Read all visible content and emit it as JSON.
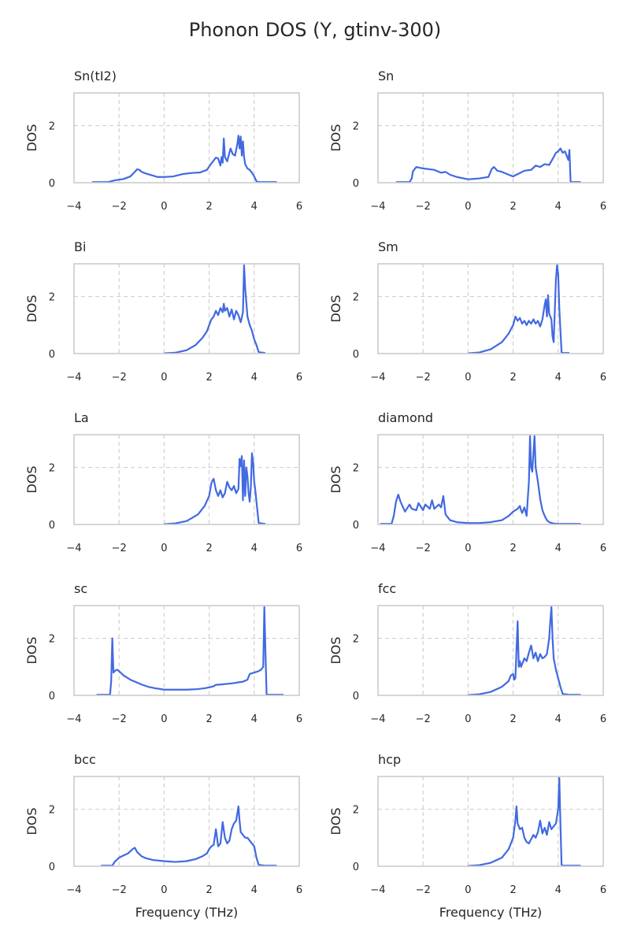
{
  "figure_title": "Phonon DOS (Y, gtinv-300)",
  "colors": {
    "line": "#4169e1",
    "grid": "#cccccc",
    "text": "#262626"
  },
  "chart_data": [
    {
      "type": "line",
      "title": "Sn(tI2)",
      "ylabel": "DOS",
      "xlabel": "",
      "xlim": [
        -4,
        6
      ],
      "ylim": [
        0,
        3.15
      ],
      "xticks": [
        -4,
        -2,
        0,
        2,
        4,
        6
      ],
      "yticks": [
        0,
        2
      ],
      "grid": true,
      "series": [
        {
          "x": [
            -3.2,
            -2.5,
            -2.2,
            -1.8,
            -1.5,
            -1.3,
            -1.2,
            -1.1,
            -1.0,
            -0.8,
            -0.5,
            -0.3,
            0.0,
            0.4,
            0.8,
            1.2,
            1.6,
            1.9,
            2.1,
            2.3,
            2.4,
            2.5,
            2.55,
            2.6,
            2.65,
            2.7,
            2.8,
            2.95,
            3.05,
            3.15,
            3.25,
            3.3,
            3.35,
            3.4,
            3.45,
            3.5,
            3.55,
            3.6,
            3.7,
            3.8,
            3.9,
            4.0,
            4.1,
            4.2,
            4.5,
            5.0
          ],
          "y": [
            0.02,
            0.02,
            0.08,
            0.13,
            0.22,
            0.38,
            0.47,
            0.45,
            0.38,
            0.32,
            0.25,
            0.2,
            0.2,
            0.22,
            0.3,
            0.34,
            0.36,
            0.45,
            0.68,
            0.88,
            0.85,
            0.6,
            0.9,
            0.7,
            1.55,
            0.9,
            0.75,
            1.2,
            1.0,
            0.95,
            1.35,
            1.65,
            1.2,
            1.62,
            0.95,
            1.45,
            0.9,
            0.65,
            0.5,
            0.45,
            0.35,
            0.22,
            0.05,
            0.02,
            0.02,
            0.02
          ]
        }
      ]
    },
    {
      "type": "line",
      "title": "Sn",
      "ylabel": "DOS",
      "xlabel": "",
      "xlim": [
        -4,
        6
      ],
      "ylim": [
        0,
        3.15
      ],
      "xticks": [
        -4,
        -2,
        0,
        2,
        4,
        6
      ],
      "yticks": [
        0,
        2
      ],
      "grid": true,
      "series": [
        {
          "x": [
            -3.2,
            -2.6,
            -2.5,
            -2.45,
            -2.3,
            -2.0,
            -1.5,
            -1.2,
            -1.0,
            -0.8,
            -0.5,
            0.0,
            0.5,
            0.9,
            1.05,
            1.15,
            1.3,
            1.5,
            1.8,
            2.0,
            2.2,
            2.5,
            2.8,
            3.0,
            3.2,
            3.4,
            3.6,
            3.8,
            3.9,
            4.0,
            4.1,
            4.2,
            4.3,
            4.4,
            4.45,
            4.5,
            4.55,
            4.6,
            5.0
          ],
          "y": [
            0.02,
            0.02,
            0.15,
            0.4,
            0.55,
            0.5,
            0.45,
            0.35,
            0.38,
            0.28,
            0.2,
            0.12,
            0.15,
            0.2,
            0.48,
            0.55,
            0.42,
            0.38,
            0.28,
            0.22,
            0.3,
            0.42,
            0.45,
            0.6,
            0.55,
            0.65,
            0.62,
            0.9,
            1.05,
            1.1,
            1.2,
            1.05,
            1.1,
            0.9,
            0.8,
            1.15,
            0.05,
            0.02,
            0.02
          ]
        }
      ]
    },
    {
      "type": "line",
      "title": "Bi",
      "ylabel": "DOS",
      "xlabel": "",
      "xlim": [
        -4,
        6
      ],
      "ylim": [
        0,
        3.15
      ],
      "xticks": [
        -4,
        -2,
        0,
        2,
        4,
        6
      ],
      "yticks": [
        0,
        2
      ],
      "grid": true,
      "series": [
        {
          "x": [
            0.0,
            0.5,
            1.0,
            1.4,
            1.7,
            1.9,
            2.0,
            2.1,
            2.2,
            2.3,
            2.4,
            2.5,
            2.6,
            2.65,
            2.7,
            2.8,
            2.9,
            3.0,
            3.1,
            3.2,
            3.3,
            3.4,
            3.5,
            3.55,
            3.6,
            3.7,
            3.8,
            3.9,
            4.0,
            4.1,
            4.2,
            4.5
          ],
          "y": [
            0.01,
            0.03,
            0.12,
            0.3,
            0.55,
            0.78,
            1.0,
            1.2,
            1.3,
            1.5,
            1.35,
            1.6,
            1.45,
            1.75,
            1.5,
            1.6,
            1.3,
            1.55,
            1.2,
            1.5,
            1.35,
            1.1,
            1.45,
            3.1,
            2.3,
            1.3,
            1.0,
            0.8,
            0.5,
            0.3,
            0.05,
            0.02
          ]
        }
      ]
    },
    {
      "type": "line",
      "title": "Sm",
      "ylabel": "DOS",
      "xlabel": "",
      "xlim": [
        -4,
        6
      ],
      "ylim": [
        0,
        3.15
      ],
      "xticks": [
        -4,
        -2,
        0,
        2,
        4,
        6
      ],
      "yticks": [
        0,
        2
      ],
      "grid": true,
      "series": [
        {
          "x": [
            0.0,
            0.5,
            1.0,
            1.5,
            1.8,
            2.0,
            2.1,
            2.2,
            2.3,
            2.4,
            2.5,
            2.6,
            2.7,
            2.8,
            2.9,
            3.0,
            3.1,
            3.2,
            3.3,
            3.4,
            3.45,
            3.5,
            3.55,
            3.6,
            3.7,
            3.75,
            3.8,
            3.85,
            3.9,
            3.95,
            4.0,
            4.05,
            4.1,
            4.15,
            4.2,
            4.5
          ],
          "y": [
            0.01,
            0.04,
            0.15,
            0.4,
            0.7,
            1.0,
            1.3,
            1.15,
            1.25,
            1.05,
            1.15,
            1.0,
            1.15,
            1.05,
            1.2,
            1.05,
            1.15,
            0.95,
            1.2,
            1.7,
            1.9,
            1.3,
            2.05,
            1.4,
            1.2,
            0.6,
            0.4,
            1.5,
            2.6,
            3.1,
            2.8,
            1.6,
            0.8,
            0.05,
            0.02,
            0.02
          ]
        }
      ]
    },
    {
      "type": "line",
      "title": "La",
      "ylabel": "DOS",
      "xlabel": "",
      "xlim": [
        -4,
        6
      ],
      "ylim": [
        0,
        3.15
      ],
      "xticks": [
        -4,
        -2,
        0,
        2,
        4,
        6
      ],
      "yticks": [
        0,
        2
      ],
      "grid": true,
      "series": [
        {
          "x": [
            0.0,
            0.5,
            1.0,
            1.5,
            1.8,
            2.0,
            2.1,
            2.15,
            2.2,
            2.3,
            2.4,
            2.5,
            2.6,
            2.7,
            2.8,
            2.9,
            3.0,
            3.1,
            3.2,
            3.3,
            3.35,
            3.4,
            3.45,
            3.5,
            3.55,
            3.6,
            3.65,
            3.7,
            3.75,
            3.8,
            3.85,
            3.9,
            3.95,
            4.0,
            4.05,
            4.1,
            4.2,
            4.5
          ],
          "y": [
            0.01,
            0.04,
            0.12,
            0.35,
            0.65,
            1.0,
            1.45,
            1.55,
            1.6,
            1.2,
            1.0,
            1.2,
            0.95,
            1.1,
            1.5,
            1.3,
            1.2,
            1.35,
            1.1,
            1.25,
            2.3,
            2.05,
            2.4,
            0.85,
            2.25,
            1.0,
            2.0,
            1.7,
            1.1,
            0.8,
            1.3,
            2.5,
            2.2,
            1.5,
            1.2,
            0.8,
            0.05,
            0.02
          ]
        }
      ]
    },
    {
      "type": "line",
      "title": "diamond",
      "ylabel": "DOS",
      "xlabel": "",
      "xlim": [
        -4,
        6
      ],
      "ylim": [
        0,
        3.15
      ],
      "xticks": [
        -4,
        -2,
        0,
        2,
        4,
        6
      ],
      "yticks": [
        0,
        2
      ],
      "grid": true,
      "series": [
        {
          "x": [
            -3.9,
            -3.4,
            -3.3,
            -3.2,
            -3.1,
            -3.0,
            -2.8,
            -2.6,
            -2.5,
            -2.3,
            -2.2,
            -2.0,
            -1.9,
            -1.7,
            -1.6,
            -1.5,
            -1.3,
            -1.2,
            -1.1,
            -1.0,
            -0.8,
            -0.5,
            0.0,
            0.5,
            1.0,
            1.5,
            1.8,
            2.0,
            2.2,
            2.3,
            2.35,
            2.4,
            2.5,
            2.6,
            2.7,
            2.75,
            2.8,
            2.85,
            2.9,
            2.95,
            3.0,
            3.1,
            3.2,
            3.3,
            3.4,
            3.5,
            3.6,
            3.8,
            4.0,
            4.3,
            5.0
          ],
          "y": [
            0.02,
            0.02,
            0.3,
            0.8,
            1.05,
            0.8,
            0.45,
            0.7,
            0.55,
            0.5,
            0.75,
            0.5,
            0.7,
            0.55,
            0.85,
            0.55,
            0.7,
            0.6,
            1.0,
            0.35,
            0.15,
            0.08,
            0.05,
            0.05,
            0.08,
            0.15,
            0.3,
            0.45,
            0.55,
            0.65,
            0.5,
            0.4,
            0.6,
            0.3,
            1.5,
            3.1,
            2.0,
            1.85,
            2.5,
            3.1,
            2.0,
            1.5,
            0.9,
            0.5,
            0.3,
            0.15,
            0.08,
            0.03,
            0.02,
            0.02,
            0.02
          ]
        }
      ]
    },
    {
      "type": "line",
      "title": "sc",
      "ylabel": "DOS",
      "xlabel": "",
      "xlim": [
        -4,
        6
      ],
      "ylim": [
        0,
        3.15
      ],
      "xticks": [
        -4,
        -2,
        0,
        2,
        4,
        6
      ],
      "yticks": [
        0,
        2
      ],
      "grid": true,
      "series": [
        {
          "x": [
            -3.0,
            -2.4,
            -2.35,
            -2.3,
            -2.25,
            -2.2,
            -2.1,
            -2.0,
            -1.8,
            -1.5,
            -1.2,
            -1.0,
            -0.7,
            -0.4,
            0.0,
            0.5,
            1.0,
            1.5,
            1.8,
            2.0,
            2.2,
            2.3,
            2.5,
            3.0,
            3.5,
            3.7,
            3.8,
            4.0,
            4.2,
            4.3,
            4.4,
            4.45,
            4.5,
            4.55,
            4.6,
            4.7,
            5.0,
            5.3
          ],
          "y": [
            0.02,
            0.02,
            0.5,
            2.0,
            0.8,
            0.85,
            0.9,
            0.85,
            0.7,
            0.55,
            0.45,
            0.38,
            0.3,
            0.25,
            0.2,
            0.2,
            0.2,
            0.22,
            0.25,
            0.28,
            0.32,
            0.37,
            0.38,
            0.42,
            0.48,
            0.55,
            0.75,
            0.8,
            0.85,
            0.9,
            1.0,
            3.1,
            1.5,
            0.05,
            0.02,
            0.02,
            0.02,
            0.02
          ]
        }
      ]
    },
    {
      "type": "line",
      "title": "fcc",
      "ylabel": "DOS",
      "xlabel": "",
      "xlim": [
        -4,
        6
      ],
      "ylim": [
        0,
        3.15
      ],
      "xticks": [
        -4,
        -2,
        0,
        2,
        4,
        6
      ],
      "yticks": [
        0,
        2
      ],
      "grid": true,
      "series": [
        {
          "x": [
            0.0,
            0.5,
            1.0,
            1.5,
            1.8,
            1.9,
            2.0,
            2.05,
            2.1,
            2.2,
            2.25,
            2.3,
            2.35,
            2.4,
            2.5,
            2.6,
            2.7,
            2.8,
            2.9,
            3.0,
            3.1,
            3.2,
            3.3,
            3.4,
            3.5,
            3.6,
            3.65,
            3.7,
            3.75,
            3.8,
            3.9,
            4.0,
            4.1,
            4.2,
            4.5,
            5.0
          ],
          "y": [
            0.01,
            0.04,
            0.12,
            0.3,
            0.5,
            0.7,
            0.75,
            0.55,
            0.6,
            2.6,
            1.0,
            1.2,
            1.0,
            1.1,
            1.3,
            1.2,
            1.5,
            1.75,
            1.3,
            1.5,
            1.2,
            1.45,
            1.3,
            1.35,
            1.45,
            2.0,
            2.6,
            3.1,
            2.0,
            1.3,
            0.9,
            0.6,
            0.3,
            0.05,
            0.02,
            0.02
          ]
        }
      ]
    },
    {
      "type": "line",
      "title": "bcc",
      "ylabel": "DOS",
      "xlabel": "Frequency (THz)",
      "xlim": [
        -4,
        6
      ],
      "ylim": [
        0,
        3.15
      ],
      "xticks": [
        -4,
        -2,
        0,
        2,
        4,
        6
      ],
      "yticks": [
        0,
        2
      ],
      "grid": true,
      "series": [
        {
          "x": [
            -2.8,
            -2.3,
            -2.2,
            -2.0,
            -1.8,
            -1.6,
            -1.4,
            -1.3,
            -1.2,
            -1.0,
            -0.8,
            -0.5,
            0.0,
            0.5,
            1.0,
            1.4,
            1.7,
            1.9,
            2.0,
            2.1,
            2.2,
            2.3,
            2.4,
            2.5,
            2.6,
            2.7,
            2.8,
            2.9,
            3.0,
            3.1,
            3.2,
            3.3,
            3.35,
            3.4,
            3.5,
            3.6,
            3.7,
            3.8,
            3.9,
            4.0,
            4.1,
            4.2,
            4.5,
            5.0
          ],
          "y": [
            0.02,
            0.02,
            0.15,
            0.3,
            0.38,
            0.45,
            0.6,
            0.65,
            0.5,
            0.35,
            0.28,
            0.22,
            0.18,
            0.15,
            0.18,
            0.25,
            0.35,
            0.45,
            0.6,
            0.7,
            0.75,
            1.3,
            0.7,
            0.8,
            1.55,
            1.0,
            0.8,
            0.9,
            1.3,
            1.5,
            1.6,
            2.1,
            1.6,
            1.2,
            1.1,
            1.0,
            1.0,
            0.9,
            0.8,
            0.7,
            0.3,
            0.05,
            0.02,
            0.02
          ]
        }
      ]
    },
    {
      "type": "line",
      "title": "hcp",
      "ylabel": "DOS",
      "xlabel": "Frequency (THz)",
      "xlim": [
        -4,
        6
      ],
      "ylim": [
        0,
        3.15
      ],
      "xticks": [
        -4,
        -2,
        0,
        2,
        4,
        6
      ],
      "yticks": [
        0,
        2
      ],
      "grid": true,
      "series": [
        {
          "x": [
            0.0,
            0.5,
            1.0,
            1.5,
            1.8,
            2.0,
            2.1,
            2.15,
            2.2,
            2.3,
            2.4,
            2.5,
            2.6,
            2.7,
            2.8,
            2.9,
            3.0,
            3.1,
            3.2,
            3.3,
            3.4,
            3.5,
            3.6,
            3.7,
            3.8,
            3.9,
            4.0,
            4.05,
            4.1,
            4.15,
            4.2,
            4.5,
            5.0
          ],
          "y": [
            0.01,
            0.04,
            0.12,
            0.3,
            0.6,
            1.0,
            1.6,
            2.1,
            1.5,
            1.3,
            1.35,
            1.0,
            0.85,
            0.8,
            0.95,
            1.1,
            1.0,
            1.2,
            1.6,
            1.15,
            1.35,
            1.1,
            1.55,
            1.3,
            1.4,
            1.5,
            2.0,
            3.1,
            1.5,
            0.05,
            0.02,
            0.02,
            0.02
          ]
        }
      ]
    }
  ]
}
